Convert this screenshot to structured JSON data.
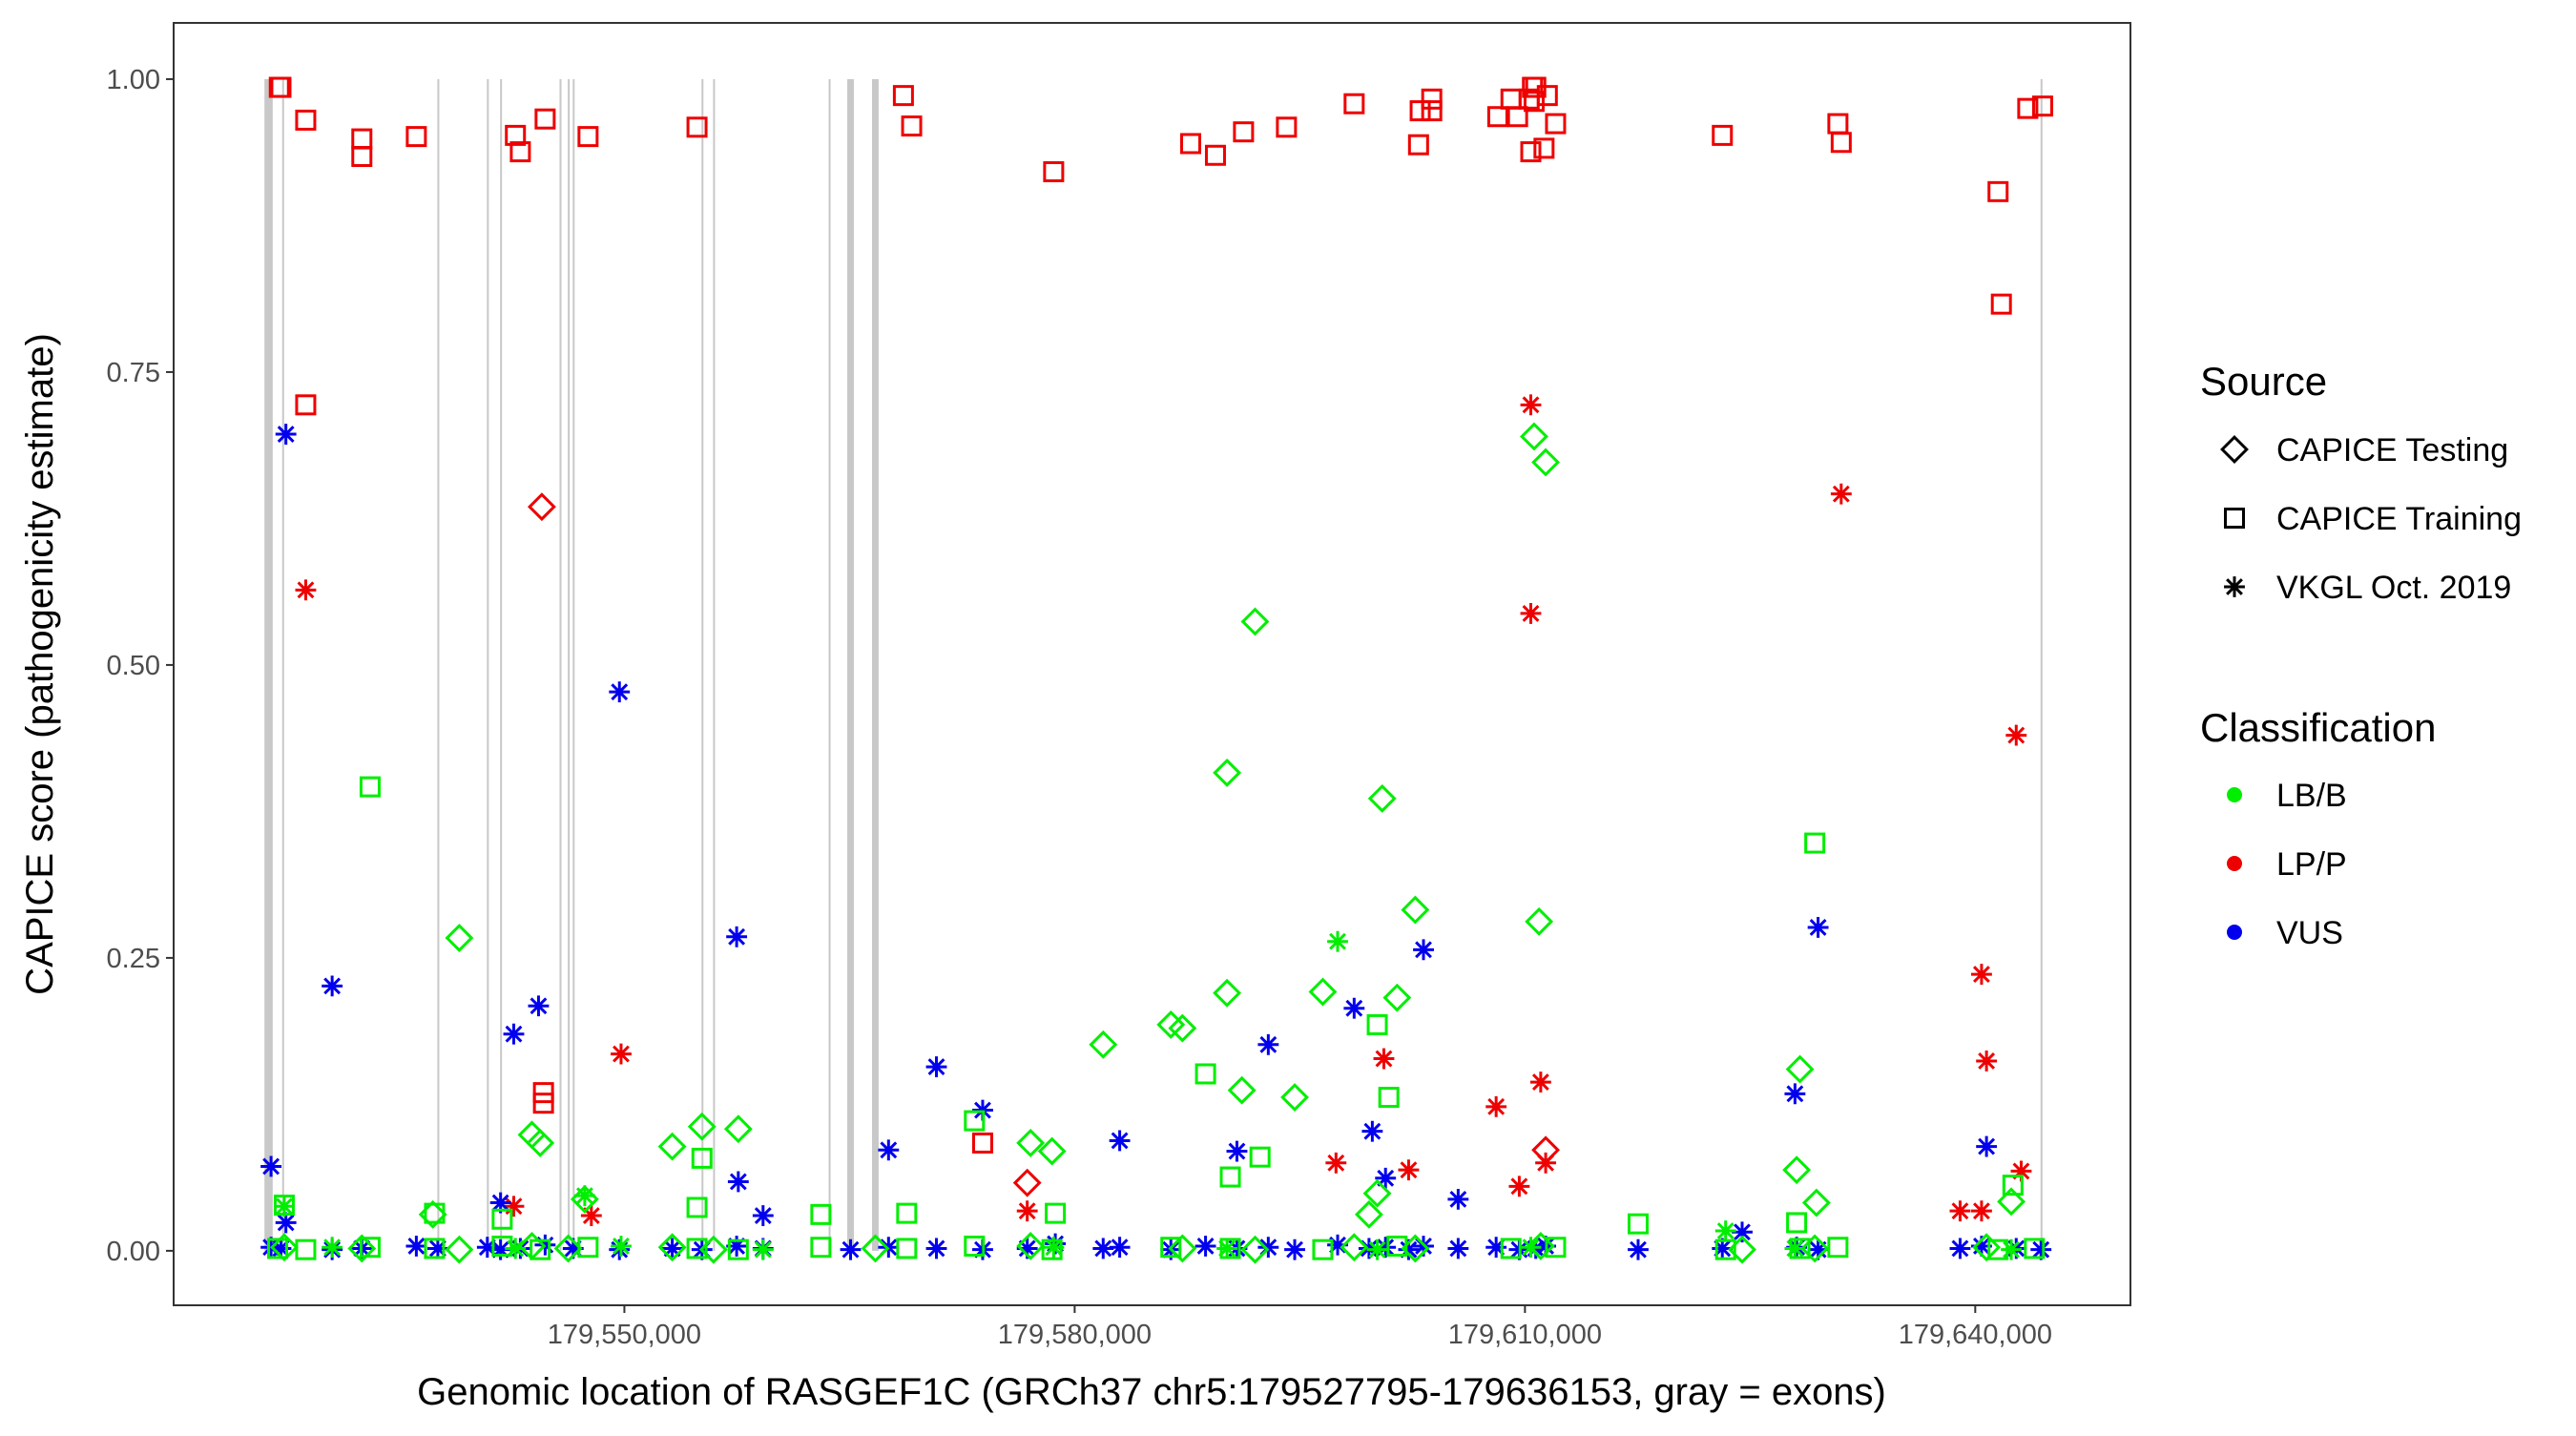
{
  "chart_data": {
    "type": "scatter",
    "title": "",
    "xlabel": "Genomic location of RASGEF1C (GRCh37 chr5:179527795-179636153, gray = exons)",
    "ylabel": "CAPICE score (pathogenicity estimate)",
    "xlim": [
      179519970,
      179650340
    ],
    "ylim": [
      -0.0465,
      1.048
    ],
    "x_ticks": [
      179550000,
      179580000,
      179610000,
      179640000
    ],
    "x_tick_labels": [
      "179,550,000",
      "179,580,000",
      "179,610,000",
      "179,640,000"
    ],
    "y_ticks": [
      0,
      0.25,
      0.5,
      0.75,
      1.0
    ],
    "y_tick_labels": [
      "0.00",
      "0.25",
      "0.50",
      "0.75",
      "1.00"
    ],
    "grid": false,
    "exon_color": "#c8c8c8",
    "exons": [
      [
        179526020,
        179526570
      ],
      [
        179527200,
        179527260
      ],
      [
        179537540,
        179537600
      ],
      [
        179540840,
        179540900
      ],
      [
        179541720,
        179541780
      ],
      [
        179545680,
        179545740
      ],
      [
        179546230,
        179546290
      ],
      [
        179546560,
        179546620
      ],
      [
        179555140,
        179555200
      ],
      [
        179555910,
        179555970
      ],
      [
        179563610,
        179563670
      ],
      [
        179564850,
        179565290
      ],
      [
        179566500,
        179566940
      ],
      [
        179644350,
        179644410
      ]
    ],
    "legend": {
      "placement": "right",
      "source_title": "Source",
      "source_items": [
        {
          "label": "CAPICE Testing",
          "shape": "diamond"
        },
        {
          "label": "CAPICE Training",
          "shape": "square"
        },
        {
          "label": "VKGL Oct. 2019",
          "shape": "asterisk"
        }
      ],
      "class_title": "Classification",
      "class_items": [
        {
          "label": "LB/B",
          "color": "#00ee00"
        },
        {
          "label": "LP/P",
          "color": "#ee0000"
        },
        {
          "label": "VUS",
          "color": "#0000ee"
        }
      ]
    },
    "series": [
      {
        "source": "CAPICE Training",
        "shape": "square",
        "classification": "LP/P",
        "color": "#ee0000",
        "points": [
          [
            179527010,
            0.993
          ],
          [
            179527120,
            0.993
          ],
          [
            179528770,
            0.965
          ],
          [
            179532510,
            0.949
          ],
          [
            179532510,
            0.934
          ],
          [
            179536140,
            0.951
          ],
          [
            179542740,
            0.952
          ],
          [
            179543070,
            0.938
          ],
          [
            179544720,
            0.966
          ],
          [
            179547580,
            0.951
          ],
          [
            179554840,
            0.959
          ],
          [
            179568590,
            0.986
          ],
          [
            179569140,
            0.96
          ],
          [
            179578600,
            0.921
          ],
          [
            179587730,
            0.945
          ],
          [
            179589380,
            0.935
          ],
          [
            179591250,
            0.955
          ],
          [
            179594110,
            0.959
          ],
          [
            179598620,
            0.979
          ],
          [
            179602910,
            0.944
          ],
          [
            179603020,
            0.973
          ],
          [
            179603790,
            0.983
          ],
          [
            179603790,
            0.973
          ],
          [
            179608190,
            0.968
          ],
          [
            179609070,
            0.983
          ],
          [
            179609510,
            0.968
          ],
          [
            179610280,
            0.983
          ],
          [
            179610500,
            0.993
          ],
          [
            179610720,
            0.993
          ],
          [
            179610610,
            0.981
          ],
          [
            179610390,
            0.938
          ],
          [
            179611270,
            0.941
          ],
          [
            179611490,
            0.986
          ],
          [
            179612040,
            0.962
          ],
          [
            179623150,
            0.952
          ],
          [
            179630850,
            0.962
          ],
          [
            179631070,
            0.946
          ],
          [
            179641520,
            0.904
          ],
          [
            179641740,
            0.808
          ],
          [
            179643500,
            0.975
          ],
          [
            179644490,
            0.977
          ],
          [
            179528770,
            0.722
          ],
          [
            179573870,
            0.092
          ],
          [
            179544610,
            0.135
          ],
          [
            179544610,
            0.126
          ]
        ]
      },
      {
        "source": "CAPICE Testing",
        "shape": "diamond",
        "classification": "LP/P",
        "color": "#ee0000",
        "points": [
          [
            179544500,
            0.635
          ],
          [
            179576840,
            0.058
          ],
          [
            179611380,
            0.086
          ]
        ]
      },
      {
        "source": "VKGL Oct. 2019",
        "shape": "asterisk",
        "classification": "LP/P",
        "color": "#ee0000",
        "points": [
          [
            179528770,
            0.564
          ],
          [
            179542630,
            0.038
          ],
          [
            179549780,
            0.168
          ],
          [
            179547800,
            0.03
          ],
          [
            179576840,
            0.034
          ],
          [
            179597410,
            0.075
          ],
          [
            179600600,
            0.164
          ],
          [
            179602250,
            0.069
          ],
          [
            179608080,
            0.123
          ],
          [
            179610390,
            0.722
          ],
          [
            179610390,
            0.544
          ],
          [
            179611050,
            0.144
          ],
          [
            179611380,
            0.075
          ],
          [
            179609620,
            0.055
          ],
          [
            179631070,
            0.646
          ],
          [
            179642730,
            0.44
          ],
          [
            179640420,
            0.236
          ],
          [
            179640750,
            0.162
          ],
          [
            179643060,
            0.068
          ],
          [
            179638990,
            0.034
          ],
          [
            179640420,
            0.034
          ]
        ]
      },
      {
        "source": "VKGL Oct. 2019",
        "shape": "asterisk",
        "classification": "VUS",
        "color": "#0000ee",
        "points": [
          [
            179527450,
            0.697
          ],
          [
            179530530,
            0.226
          ],
          [
            179549670,
            0.477
          ],
          [
            179557480,
            0.268
          ],
          [
            179542630,
            0.185
          ],
          [
            179544280,
            0.209
          ],
          [
            179526460,
            0.072
          ],
          [
            179557590,
            0.059
          ],
          [
            179559240,
            0.03
          ],
          [
            179567600,
            0.086
          ],
          [
            179570790,
            0.157
          ],
          [
            179573870,
            0.12
          ],
          [
            179583000,
            0.094
          ],
          [
            179592900,
            0.176
          ],
          [
            179590810,
            0.085
          ],
          [
            179598620,
            0.207
          ],
          [
            179599830,
            0.102
          ],
          [
            179600710,
            0.062
          ],
          [
            179603240,
            0.257
          ],
          [
            179605550,
            0.044
          ],
          [
            179629530,
            0.276
          ],
          [
            179627990,
            0.134
          ],
          [
            179640750,
            0.089
          ],
          [
            179624470,
            0.016
          ],
          [
            179527450,
            0.024
          ],
          [
            179541750,
            0.041
          ],
          [
            179526460,
            0.003
          ],
          [
            179527120,
            0.002
          ],
          [
            179530530,
            0.001
          ],
          [
            179532510,
            0.002
          ],
          [
            179536140,
            0.004
          ],
          [
            179537570,
            0.002
          ],
          [
            179540870,
            0.003
          ],
          [
            179541750,
            0.001
          ],
          [
            179543070,
            0.002
          ],
          [
            179544720,
            0.005
          ],
          [
            179546590,
            0.002
          ],
          [
            179549670,
            0.001
          ],
          [
            179553190,
            0.002
          ],
          [
            179555170,
            0.001
          ],
          [
            179557480,
            0.004
          ],
          [
            179559240,
            0.002
          ],
          [
            179565070,
            0.001
          ],
          [
            179567600,
            0.003
          ],
          [
            179570790,
            0.002
          ],
          [
            179573870,
            0.001
          ],
          [
            179576840,
            0.002
          ],
          [
            179578710,
            0.006
          ],
          [
            179581900,
            0.002
          ],
          [
            179583000,
            0.003
          ],
          [
            179586410,
            0.001
          ],
          [
            179588720,
            0.004
          ],
          [
            179590810,
            0.002
          ],
          [
            179592900,
            0.003
          ],
          [
            179594660,
            0.001
          ],
          [
            179597520,
            0.005
          ],
          [
            179599610,
            0.002
          ],
          [
            179600710,
            0.003
          ],
          [
            179602250,
            0.001
          ],
          [
            179603240,
            0.004
          ],
          [
            179605550,
            0.002
          ],
          [
            179608080,
            0.003
          ],
          [
            179609620,
            0.001
          ],
          [
            179610720,
            0.002
          ],
          [
            179611380,
            0.004
          ],
          [
            179617540,
            0.001
          ],
          [
            179623150,
            0.002
          ],
          [
            179628100,
            0.003
          ],
          [
            179629530,
            0.001
          ],
          [
            179638990,
            0.002
          ],
          [
            179640420,
            0.004
          ],
          [
            179642730,
            0.002
          ],
          [
            179644380,
            0.001
          ]
        ]
      },
      {
        "source": "CAPICE Testing",
        "shape": "diamond",
        "classification": "LB/B",
        "color": "#00ee00",
        "points": [
          [
            179539000,
            0.267
          ],
          [
            179543840,
            0.099
          ],
          [
            179544390,
            0.092
          ],
          [
            179553190,
            0.089
          ],
          [
            179555170,
            0.106
          ],
          [
            179557590,
            0.104
          ],
          [
            179577060,
            0.092
          ],
          [
            179578490,
            0.085
          ],
          [
            179581900,
            0.176
          ],
          [
            179586410,
            0.193
          ],
          [
            179587180,
            0.19
          ],
          [
            179590150,
            0.408
          ],
          [
            179590150,
            0.22
          ],
          [
            179592020,
            0.537
          ],
          [
            179591140,
            0.137
          ],
          [
            179594660,
            0.131
          ],
          [
            179596530,
            0.221
          ],
          [
            179600490,
            0.386
          ],
          [
            179601480,
            0.216
          ],
          [
            179602690,
            0.291
          ],
          [
            179610610,
            0.695
          ],
          [
            179611380,
            0.673
          ],
          [
            179610940,
            0.281
          ],
          [
            179600160,
            0.049
          ],
          [
            179599610,
            0.031
          ],
          [
            179628100,
            0.069
          ],
          [
            179628320,
            0.155
          ],
          [
            179629420,
            0.041
          ],
          [
            179642400,
            0.042
          ],
          [
            179537240,
            0.031
          ],
          [
            179547360,
            0.044
          ],
          [
            179527340,
            0.003
          ],
          [
            179532510,
            0.002
          ],
          [
            179539000,
            0.001
          ],
          [
            179543840,
            0.004
          ],
          [
            179546260,
            0.002
          ],
          [
            179553190,
            0.003
          ],
          [
            179555940,
            0.001
          ],
          [
            179566720,
            0.002
          ],
          [
            179577060,
            0.004
          ],
          [
            179587180,
            0.002
          ],
          [
            179592020,
            0.001
          ],
          [
            179598620,
            0.003
          ],
          [
            179602690,
            0.002
          ],
          [
            179611050,
            0.004
          ],
          [
            179624470,
            0.001
          ],
          [
            179629310,
            0.002
          ],
          [
            179640750,
            0.003
          ]
        ]
      },
      {
        "source": "CAPICE Training",
        "shape": "square",
        "classification": "LB/B",
        "color": "#00ee00",
        "points": [
          [
            179533060,
            0.396
          ],
          [
            179588720,
            0.151
          ],
          [
            179592350,
            0.08
          ],
          [
            179590370,
            0.063
          ],
          [
            179600160,
            0.193
          ],
          [
            179600930,
            0.131
          ],
          [
            179629310,
            0.348
          ],
          [
            179573320,
            0.111
          ],
          [
            179555170,
            0.079
          ],
          [
            179554840,
            0.037
          ],
          [
            179568810,
            0.032
          ],
          [
            179563090,
            0.031
          ],
          [
            179537350,
            0.032
          ],
          [
            179628100,
            0.024
          ],
          [
            179617540,
            0.023
          ],
          [
            179642510,
            0.056
          ],
          [
            179578710,
            0.032
          ],
          [
            179527340,
            0.039
          ],
          [
            179541860,
            0.027
          ],
          [
            179526900,
            0.002
          ],
          [
            179528770,
            0.001
          ],
          [
            179533060,
            0.003
          ],
          [
            179537350,
            0.002
          ],
          [
            179541860,
            0.004
          ],
          [
            179544390,
            0.001
          ],
          [
            179547580,
            0.003
          ],
          [
            179554840,
            0.002
          ],
          [
            179557590,
            0.001
          ],
          [
            179563090,
            0.003
          ],
          [
            179568810,
            0.002
          ],
          [
            179573320,
            0.004
          ],
          [
            179578490,
            0.001
          ],
          [
            179586410,
            0.003
          ],
          [
            179590370,
            0.002
          ],
          [
            179596530,
            0.001
          ],
          [
            179601480,
            0.004
          ],
          [
            179609070,
            0.002
          ],
          [
            179612040,
            0.003
          ],
          [
            179623370,
            0.001
          ],
          [
            179628320,
            0.002
          ],
          [
            179630850,
            0.003
          ],
          [
            179641520,
            0.001
          ],
          [
            179643940,
            0.002
          ]
        ]
      },
      {
        "source": "VKGL Oct. 2019",
        "shape": "asterisk",
        "classification": "LB/B",
        "color": "#00ee00",
        "points": [
          [
            179597520,
            0.264
          ],
          [
            179527340,
            0.038
          ],
          [
            179547360,
            0.047
          ],
          [
            179623370,
            0.017
          ],
          [
            179530530,
            0.003
          ],
          [
            179542740,
            0.002
          ],
          [
            179549780,
            0.004
          ],
          [
            179559240,
            0.001
          ],
          [
            179578600,
            0.003
          ],
          [
            179590150,
            0.002
          ],
          [
            179600160,
            0.001
          ],
          [
            179610390,
            0.003
          ],
          [
            179627990,
            0.002
          ],
          [
            179642400,
            0.001
          ]
        ]
      }
    ]
  }
}
